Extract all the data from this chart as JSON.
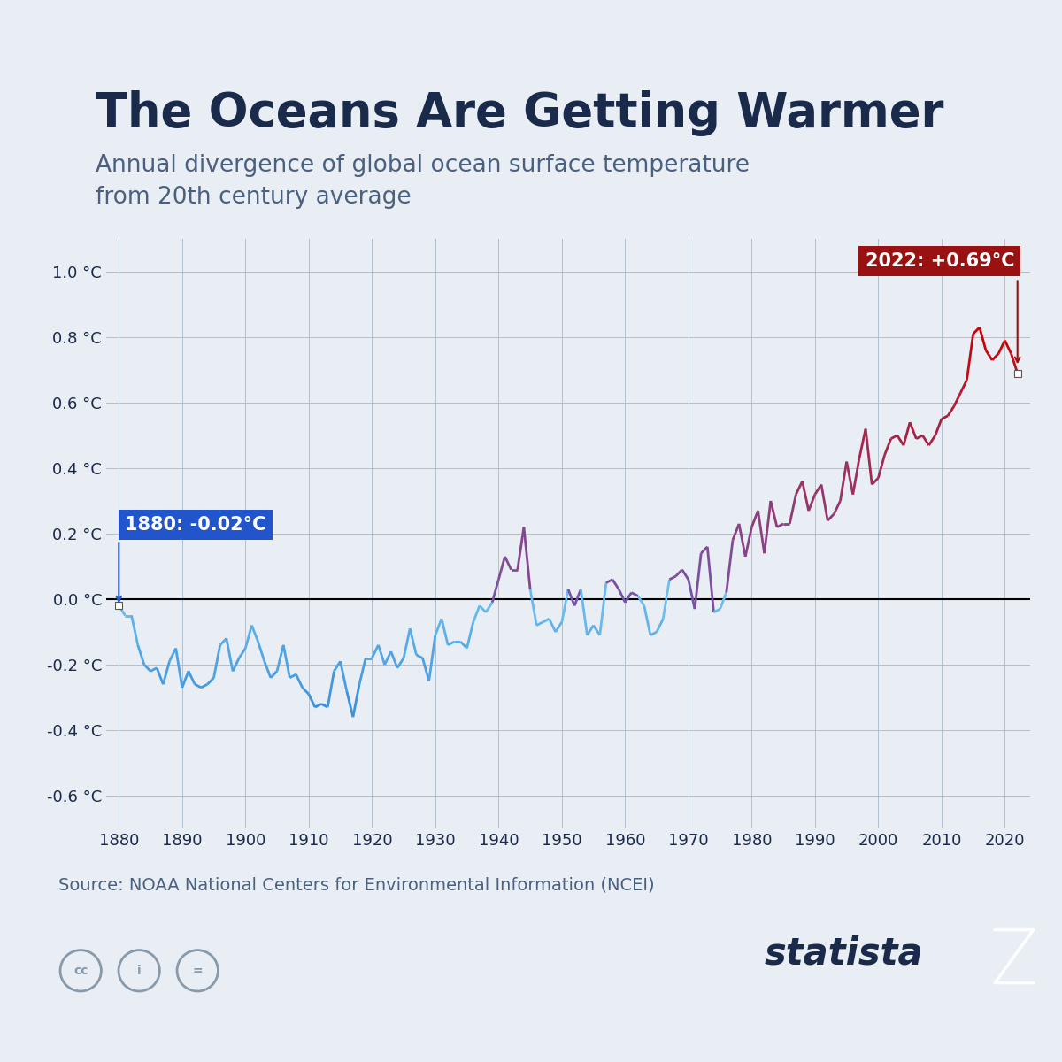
{
  "title": "The Oceans Are Getting Warmer",
  "subtitle": "Annual divergence of global ocean surface temperature\nfrom 20th century average",
  "source": "Source: NOAA National Centers for Environmental Information (NCEI)",
  "bg_color": "#e8eef4",
  "title_color": "#1a2a4a",
  "subtitle_color": "#4a6080",
  "source_color": "#4a6080",
  "red_bar_color": "#c0392b",
  "title_fontsize": 38,
  "subtitle_fontsize": 19,
  "annotation_1880": "1880: -0.02°C",
  "annotation_2022": "2022: +0.69°C",
  "ylim": [
    -0.7,
    1.1
  ],
  "xlim": [
    1878,
    2024
  ],
  "yticks": [
    -0.6,
    -0.4,
    -0.2,
    0.0,
    0.2,
    0.4,
    0.6,
    0.8,
    1.0
  ],
  "xticks": [
    1880,
    1890,
    1900,
    1910,
    1920,
    1930,
    1940,
    1950,
    1960,
    1970,
    1980,
    1990,
    2000,
    2010,
    2020
  ],
  "years": [
    1880,
    1881,
    1882,
    1883,
    1884,
    1885,
    1886,
    1887,
    1888,
    1889,
    1890,
    1891,
    1892,
    1893,
    1894,
    1895,
    1896,
    1897,
    1898,
    1899,
    1900,
    1901,
    1902,
    1903,
    1904,
    1905,
    1906,
    1907,
    1908,
    1909,
    1910,
    1911,
    1912,
    1913,
    1914,
    1915,
    1916,
    1917,
    1918,
    1919,
    1920,
    1921,
    1922,
    1923,
    1924,
    1925,
    1926,
    1927,
    1928,
    1929,
    1930,
    1931,
    1932,
    1933,
    1934,
    1935,
    1936,
    1937,
    1938,
    1939,
    1940,
    1941,
    1942,
    1943,
    1944,
    1945,
    1946,
    1947,
    1948,
    1949,
    1950,
    1951,
    1952,
    1953,
    1954,
    1955,
    1956,
    1957,
    1958,
    1959,
    1960,
    1961,
    1962,
    1963,
    1964,
    1965,
    1966,
    1967,
    1968,
    1969,
    1970,
    1971,
    1972,
    1973,
    1974,
    1975,
    1976,
    1977,
    1978,
    1979,
    1980,
    1981,
    1982,
    1983,
    1984,
    1985,
    1986,
    1987,
    1988,
    1989,
    1990,
    1991,
    1992,
    1993,
    1994,
    1995,
    1996,
    1997,
    1998,
    1999,
    2000,
    2001,
    2002,
    2003,
    2004,
    2005,
    2006,
    2007,
    2008,
    2009,
    2010,
    2011,
    2012,
    2013,
    2014,
    2015,
    2016,
    2017,
    2018,
    2019,
    2020,
    2021,
    2022
  ],
  "anomalies": [
    -0.02,
    -0.05,
    -0.05,
    -0.14,
    -0.2,
    -0.22,
    -0.21,
    -0.26,
    -0.19,
    -0.15,
    -0.27,
    -0.22,
    -0.26,
    -0.27,
    -0.26,
    -0.24,
    -0.14,
    -0.12,
    -0.22,
    -0.18,
    -0.15,
    -0.08,
    -0.13,
    -0.19,
    -0.24,
    -0.22,
    -0.14,
    -0.24,
    -0.23,
    -0.27,
    -0.29,
    -0.33,
    -0.32,
    -0.33,
    -0.22,
    -0.19,
    -0.28,
    -0.36,
    -0.26,
    -0.18,
    -0.18,
    -0.14,
    -0.2,
    -0.16,
    -0.21,
    -0.18,
    -0.09,
    -0.17,
    -0.18,
    -0.25,
    -0.11,
    -0.06,
    -0.14,
    -0.13,
    -0.13,
    -0.15,
    -0.07,
    -0.02,
    -0.04,
    -0.01,
    0.06,
    0.13,
    0.09,
    0.09,
    0.22,
    0.03,
    -0.08,
    -0.07,
    -0.06,
    -0.1,
    -0.07,
    0.03,
    -0.02,
    0.03,
    -0.11,
    -0.08,
    -0.11,
    0.05,
    0.06,
    0.03,
    -0.01,
    0.02,
    0.01,
    -0.02,
    -0.11,
    -0.1,
    -0.06,
    0.06,
    0.07,
    0.09,
    0.06,
    -0.03,
    0.14,
    0.16,
    -0.04,
    -0.03,
    0.02,
    0.18,
    0.23,
    0.13,
    0.22,
    0.27,
    0.14,
    0.3,
    0.22,
    0.23,
    0.23,
    0.32,
    0.36,
    0.27,
    0.32,
    0.35,
    0.24,
    0.26,
    0.3,
    0.42,
    0.32,
    0.43,
    0.52,
    0.35,
    0.37,
    0.44,
    0.49,
    0.5,
    0.47,
    0.54,
    0.49,
    0.5,
    0.47,
    0.5,
    0.55,
    0.56,
    0.59,
    0.63,
    0.67,
    0.81,
    0.83,
    0.76,
    0.73,
    0.75,
    0.79,
    0.75,
    0.69
  ]
}
